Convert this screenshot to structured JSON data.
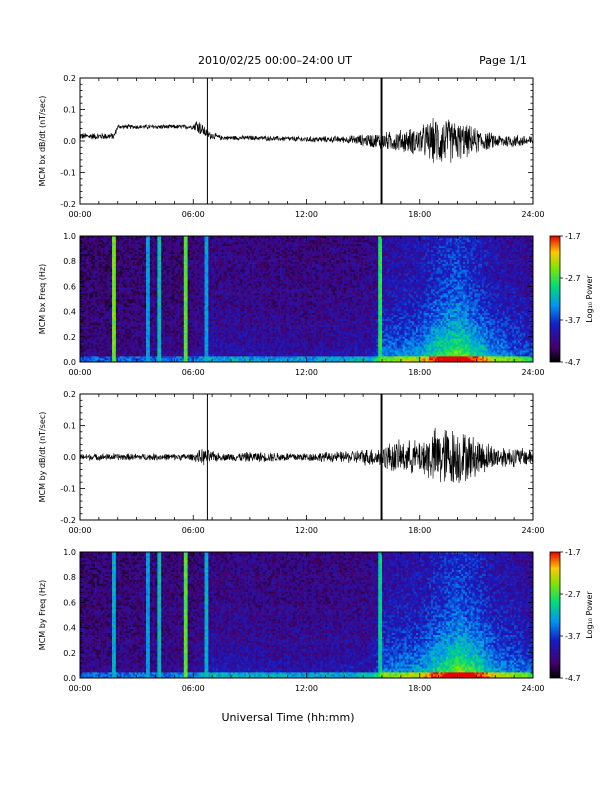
{
  "header": {
    "title": "2010/02/25  00:00–24:00 UT",
    "page": "Page 1/1"
  },
  "footer": {
    "xlabel": "Universal Time (hh:mm)"
  },
  "chart_data": [
    {
      "type": "line",
      "ylabel": "MCM bx dB/dt (nT/sec)",
      "xlim": [
        0,
        24
      ],
      "ylim": [
        -0.2,
        0.2
      ],
      "xticks": [
        "00:00",
        "06:00",
        "12:00",
        "18:00",
        "24:00"
      ],
      "yticks": [
        "0.2",
        "0.1",
        "0.0",
        "-0.1",
        "-0.2"
      ],
      "envelope": {
        "hours": [
          0,
          1.8,
          2.0,
          6.0,
          6.2,
          6.8,
          7.5,
          9,
          12,
          14,
          16,
          16.5,
          18,
          19,
          20,
          21,
          22,
          24
        ],
        "center": [
          0.015,
          0.015,
          0.045,
          0.045,
          0.05,
          0.02,
          0.01,
          0.01,
          0.005,
          0.005,
          0.0,
          0.0,
          0.0,
          0.0,
          0.0,
          0.0,
          0.0,
          0.0
        ],
        "spread": [
          0.012,
          0.012,
          0.008,
          0.008,
          0.03,
          0.015,
          0.008,
          0.008,
          0.01,
          0.012,
          0.03,
          0.035,
          0.05,
          0.09,
          0.07,
          0.045,
          0.025,
          0.02
        ]
      },
      "spikes": [
        {
          "hour": 6.75,
          "min": -0.22,
          "max": 0.22
        },
        {
          "hour": 15.95,
          "min": -0.22,
          "max": 0.22
        },
        {
          "hour": 16.0,
          "min": -0.22,
          "max": 0.22
        }
      ]
    },
    {
      "type": "heatmap",
      "ylabel": "MCM bx Freq (Hz)",
      "colorbar_label": "Log₁₀ Power",
      "colorbar_ticks": [
        "-1.7",
        "-2.7",
        "-3.7",
        "-4.7"
      ],
      "xlim": [
        0,
        24
      ],
      "ylim": [
        0.0,
        1.0
      ],
      "clim": [
        -4.7,
        -1.7
      ],
      "xticks": [
        "00:00",
        "06:00",
        "12:00",
        "18:00",
        "24:00"
      ],
      "yticks": [
        "1.0",
        "0.8",
        "0.6",
        "0.4",
        "0.2",
        "0.0"
      ],
      "vertical_lines": [
        {
          "hour": 1.8,
          "level": -2.5
        },
        {
          "hour": 3.6,
          "level": -3.3
        },
        {
          "hour": 4.2,
          "level": -3.1
        },
        {
          "hour": 5.6,
          "level": -2.6
        },
        {
          "hour": 6.7,
          "level": -3.3
        },
        {
          "hour": 15.9,
          "level": -2.8
        }
      ],
      "activity": {
        "hours": [
          0,
          6,
          7,
          12,
          15.5,
          16,
          18,
          19,
          20,
          21,
          22,
          24
        ],
        "level": [
          0.05,
          0.1,
          0.2,
          0.15,
          0.2,
          0.45,
          0.55,
          0.8,
          0.95,
          0.75,
          0.5,
          0.35
        ]
      }
    },
    {
      "type": "line",
      "ylabel": "MCM by dB/dt (nT/sec)",
      "xlim": [
        0,
        24
      ],
      "ylim": [
        -0.2,
        0.2
      ],
      "xticks": [
        "00:00",
        "06:00",
        "12:00",
        "18:00",
        "24:00"
      ],
      "yticks": [
        "0.2",
        "0.1",
        "0.0",
        "-0.1",
        "-0.2"
      ],
      "envelope": {
        "hours": [
          0,
          6,
          6.5,
          7.5,
          9,
          12,
          14,
          15.8,
          16.5,
          18,
          19,
          20,
          21,
          22,
          24
        ],
        "center": [
          0.0,
          0.0,
          0.0,
          0.0,
          0.0,
          0.0,
          0.0,
          0.0,
          0.0,
          0.0,
          0.0,
          0.0,
          0.0,
          0.0,
          0.0
        ],
        "spread": [
          0.012,
          0.012,
          0.03,
          0.012,
          0.018,
          0.015,
          0.02,
          0.035,
          0.055,
          0.06,
          0.11,
          0.1,
          0.07,
          0.04,
          0.03
        ]
      },
      "spikes": [
        {
          "hour": 6.75,
          "min": -0.22,
          "max": 0.22
        },
        {
          "hour": 15.95,
          "min": -0.22,
          "max": 0.22
        },
        {
          "hour": 16.0,
          "min": -0.22,
          "max": 0.22
        }
      ]
    },
    {
      "type": "heatmap",
      "ylabel": "MCM by Freq (Hz)",
      "colorbar_label": "Log₁₀ Power",
      "colorbar_ticks": [
        "-1.7",
        "-2.7",
        "-3.7",
        "-4.7"
      ],
      "xlim": [
        0,
        24
      ],
      "ylim": [
        0.0,
        1.0
      ],
      "clim": [
        -4.7,
        -1.7
      ],
      "xticks": [
        "00:00",
        "06:00",
        "12:00",
        "18:00",
        "24:00"
      ],
      "yticks": [
        "1.0",
        "0.8",
        "0.6",
        "0.4",
        "0.2",
        "0.0"
      ],
      "vertical_lines": [
        {
          "hour": 1.8,
          "level": -3.2
        },
        {
          "hour": 3.6,
          "level": -3.3
        },
        {
          "hour": 4.2,
          "level": -3.1
        },
        {
          "hour": 5.6,
          "level": -2.6
        },
        {
          "hour": 6.7,
          "level": -3.2
        },
        {
          "hour": 15.9,
          "level": -3.0
        }
      ],
      "activity": {
        "hours": [
          0,
          6,
          7,
          12,
          15.5,
          16,
          18,
          19,
          20,
          21,
          22,
          24
        ],
        "level": [
          0.08,
          0.12,
          0.22,
          0.18,
          0.22,
          0.45,
          0.55,
          0.75,
          0.95,
          0.8,
          0.55,
          0.4
        ]
      }
    }
  ]
}
